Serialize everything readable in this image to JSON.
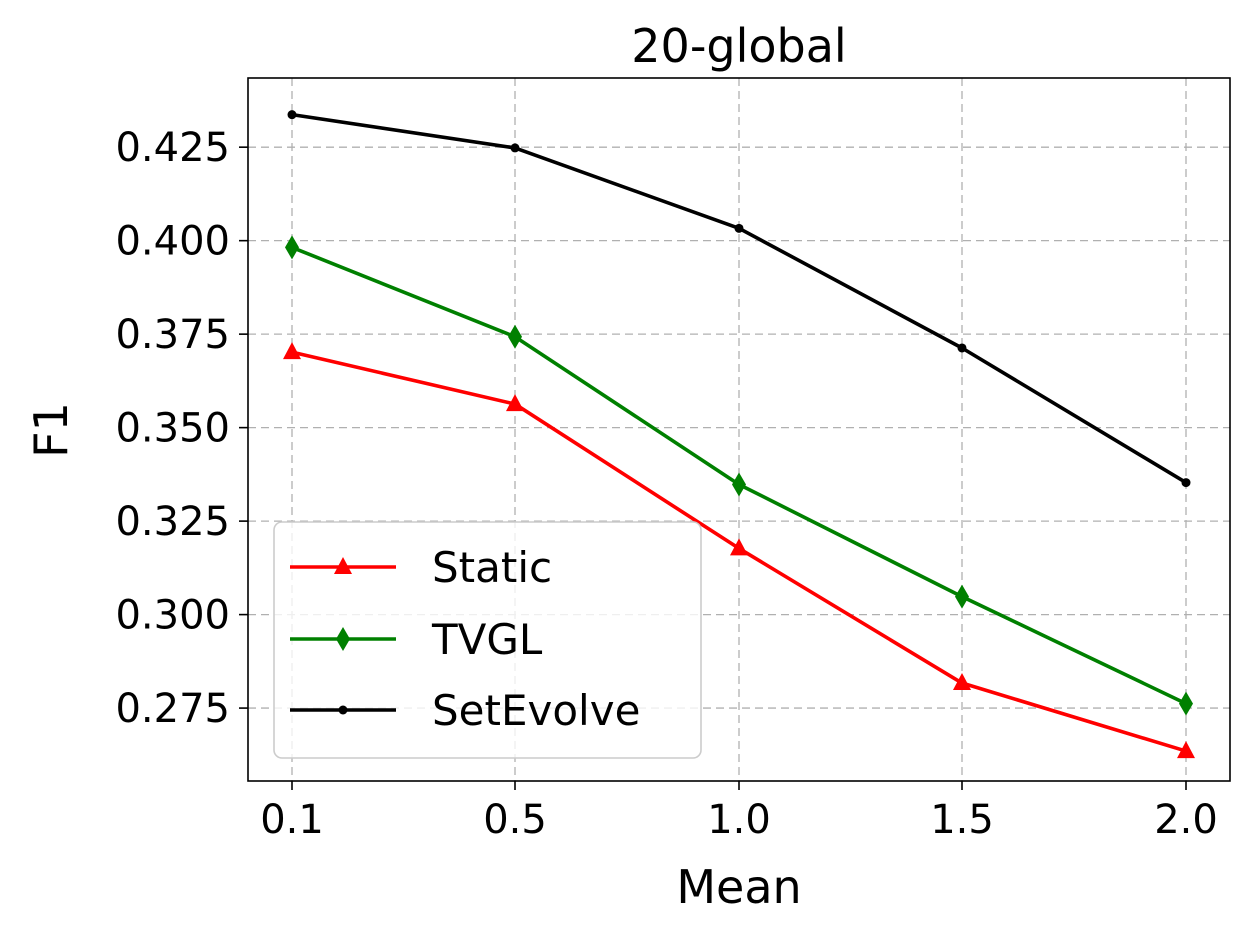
{
  "chart_data": {
    "type": "line",
    "title": "20-global",
    "xlabel": "Mean",
    "ylabel": "F1",
    "x": [
      0.1,
      0.5,
      1.0,
      1.5,
      2.0
    ],
    "x_tick_labels": [
      "0.1",
      "0.5",
      "1.0",
      "1.5",
      "2.0"
    ],
    "y_ticks": [
      0.275,
      0.3,
      0.325,
      0.35,
      0.375,
      0.4,
      0.425
    ],
    "y_tick_labels": [
      "0.275",
      "0.300",
      "0.325",
      "0.350",
      "0.375",
      "0.400",
      "0.425"
    ],
    "ylim": [
      0.2555,
      0.4435
    ],
    "grid": true,
    "legend_position": "lower-left",
    "series": [
      {
        "name": "Static",
        "color": "#ff0000",
        "marker": "triangle",
        "values": [
          0.3702,
          0.3563,
          0.3177,
          0.2817,
          0.2635
        ]
      },
      {
        "name": "TVGL",
        "color": "#008000",
        "marker": "diamond",
        "values": [
          0.3982,
          0.3743,
          0.3348,
          0.3048,
          0.2762
        ]
      },
      {
        "name": "SetEvolve",
        "color": "#000000",
        "marker": "dot",
        "values": [
          0.4337,
          0.4248,
          0.4033,
          0.3713,
          0.3353
        ]
      }
    ]
  }
}
